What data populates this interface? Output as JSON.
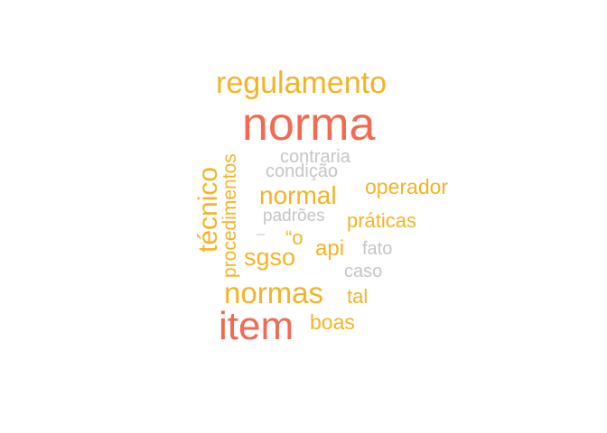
{
  "colors": {
    "high": "#f26a52",
    "mid": "#f5b324",
    "low": "#c5c5c5"
  },
  "words": {
    "norma": "norma",
    "item": "item",
    "regulamento": "regulamento",
    "tecnico": "técnico",
    "procedimentos": "procedimentos",
    "normal": "normal",
    "normas": "normas",
    "sgso": "sgso",
    "operador": "operador",
    "praticas": "práticas",
    "api": "api",
    "o": "“o",
    "tal": "tal",
    "boas": "boas",
    "contraria": "contraria",
    "condicao": "condição",
    "padroes": "padrões",
    "dash": "–",
    "fato": "fato",
    "caso": "caso"
  }
}
